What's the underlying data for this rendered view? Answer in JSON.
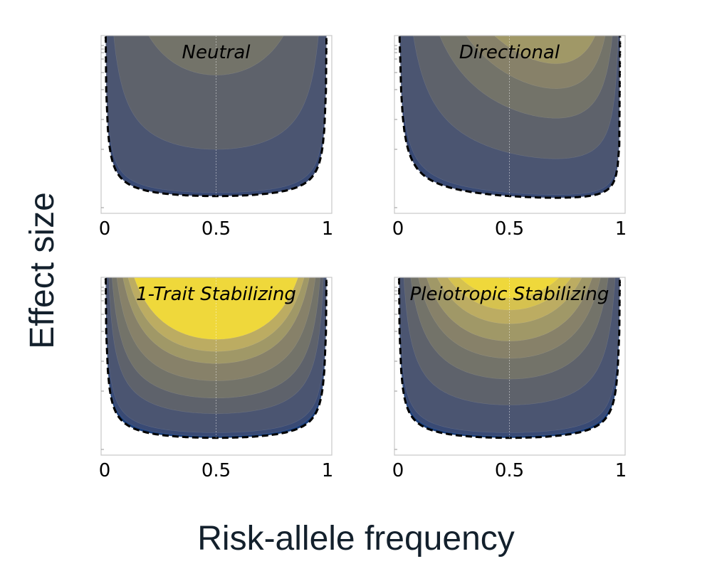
{
  "figure": {
    "ylabel": "Effect size",
    "xlabel": "Risk-allele frequency"
  },
  "colors": {
    "palette": [
      "#1c3f7a",
      "#394a74",
      "#4b5571",
      "#5e626b",
      "#737369",
      "#878169",
      "#a09867",
      "#bcac62",
      "#d6c24f",
      "#efd83b"
    ],
    "boundary": "#000000",
    "axis": "#c7c7c7"
  },
  "chart_data": [
    {
      "type": "contour",
      "title": "Neutral",
      "xlabel": "",
      "ylabel": "",
      "x_ticks": [
        "0",
        "0.5",
        "1"
      ],
      "xlim": [
        0,
        1
      ],
      "boundary": "dashed",
      "levels": [
        {
          "level": 1,
          "min_y": 0.1
        },
        {
          "level": 2,
          "min_y": 0.12
        },
        {
          "level": 3,
          "min_y": 0.37
        },
        {
          "level": 4,
          "min_y": 0.8
        }
      ]
    },
    {
      "type": "contour",
      "title": "Directional",
      "xlabel": "",
      "ylabel": "",
      "x_ticks": [
        "0",
        "0.5",
        "1"
      ],
      "xlim": [
        0,
        1
      ],
      "boundary": "dashed",
      "skew": 0.45,
      "levels": [
        {
          "level": 1,
          "min_y": 0.1
        },
        {
          "level": 2,
          "min_y": 0.12
        },
        {
          "level": 3,
          "min_y": 0.35
        },
        {
          "level": 4,
          "min_y": 0.61
        },
        {
          "level": 5,
          "min_y": 0.8
        },
        {
          "level": 6,
          "min_y": 0.96
        }
      ]
    },
    {
      "type": "contour",
      "title": "1-Trait Stabilizing",
      "xlabel": "",
      "ylabel": "",
      "x_ticks": [
        "0",
        "0.5",
        "1"
      ],
      "xlim": [
        0,
        1
      ],
      "boundary": "dashed",
      "levels": [
        {
          "level": 0,
          "min_y": 0.1
        },
        {
          "level": 1,
          "min_y": 0.11
        },
        {
          "level": 2,
          "min_y": 0.13
        },
        {
          "level": 3,
          "min_y": 0.24
        },
        {
          "level": 4,
          "min_y": 0.33
        },
        {
          "level": 5,
          "min_y": 0.43
        },
        {
          "level": 6,
          "min_y": 0.53
        },
        {
          "level": 7,
          "min_y": 0.6
        },
        {
          "level": 9,
          "min_y": 0.67
        }
      ]
    },
    {
      "type": "contour",
      "title": "Pleiotropic Stabilizing",
      "xlabel": "",
      "ylabel": "",
      "x_ticks": [
        "0",
        "0.5",
        "1"
      ],
      "xlim": [
        0,
        1
      ],
      "boundary": "dashed",
      "levels": [
        {
          "level": 0,
          "min_y": 0.1
        },
        {
          "level": 1,
          "min_y": 0.11
        },
        {
          "level": 2,
          "min_y": 0.13
        },
        {
          "level": 3,
          "min_y": 0.29
        },
        {
          "level": 4,
          "min_y": 0.44
        },
        {
          "level": 5,
          "min_y": 0.56
        },
        {
          "level": 6,
          "min_y": 0.66
        },
        {
          "level": 7,
          "min_y": 0.76
        },
        {
          "level": 8,
          "min_y": 0.84
        },
        {
          "level": 9,
          "min_y": 0.91
        }
      ]
    }
  ]
}
